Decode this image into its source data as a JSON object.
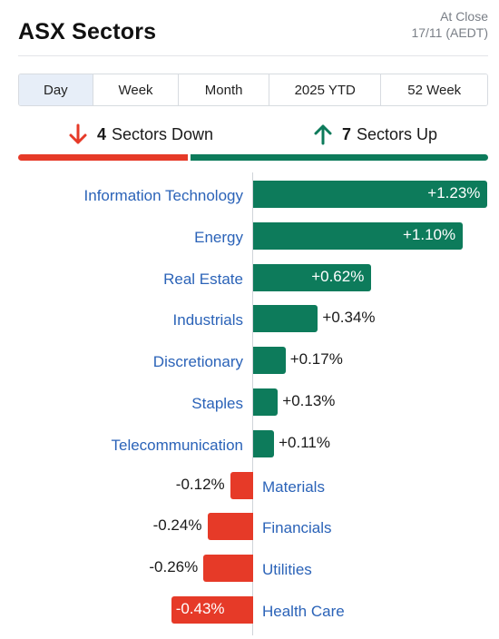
{
  "header": {
    "title": "ASX Sectors",
    "status": "At Close",
    "date": "17/11 (AEDT)"
  },
  "tabs": [
    {
      "label": "Day",
      "active": true
    },
    {
      "label": "Week",
      "active": false
    },
    {
      "label": "Month",
      "active": false
    },
    {
      "label": "2025 YTD",
      "active": false
    },
    {
      "label": "52 Week",
      "active": false
    }
  ],
  "summary": {
    "down_count": "4",
    "down_label": "Sectors Down",
    "up_count": "7",
    "up_label": "Sectors Up",
    "down_color": "#e63a28",
    "up_color": "#0d7b5b"
  },
  "chart_data": {
    "type": "bar",
    "orientation": "horizontal",
    "unit": "%",
    "categories": [
      "Information Technology",
      "Energy",
      "Real Estate",
      "Industrials",
      "Discretionary",
      "Staples",
      "Telecommunication",
      "Materials",
      "Financials",
      "Utilities",
      "Health Care"
    ],
    "values": [
      1.23,
      1.1,
      0.62,
      0.34,
      0.17,
      0.13,
      0.11,
      -0.12,
      -0.24,
      -0.26,
      -0.43
    ],
    "value_labels": [
      "+1.23%",
      "+1.10%",
      "+0.62%",
      "+0.34%",
      "+0.17%",
      "+0.13%",
      "+0.11%",
      "-0.12%",
      "-0.24%",
      "-0.26%",
      "-0.43%"
    ],
    "positive_color": "#0d7b5b",
    "negative_color": "#e63a28"
  }
}
